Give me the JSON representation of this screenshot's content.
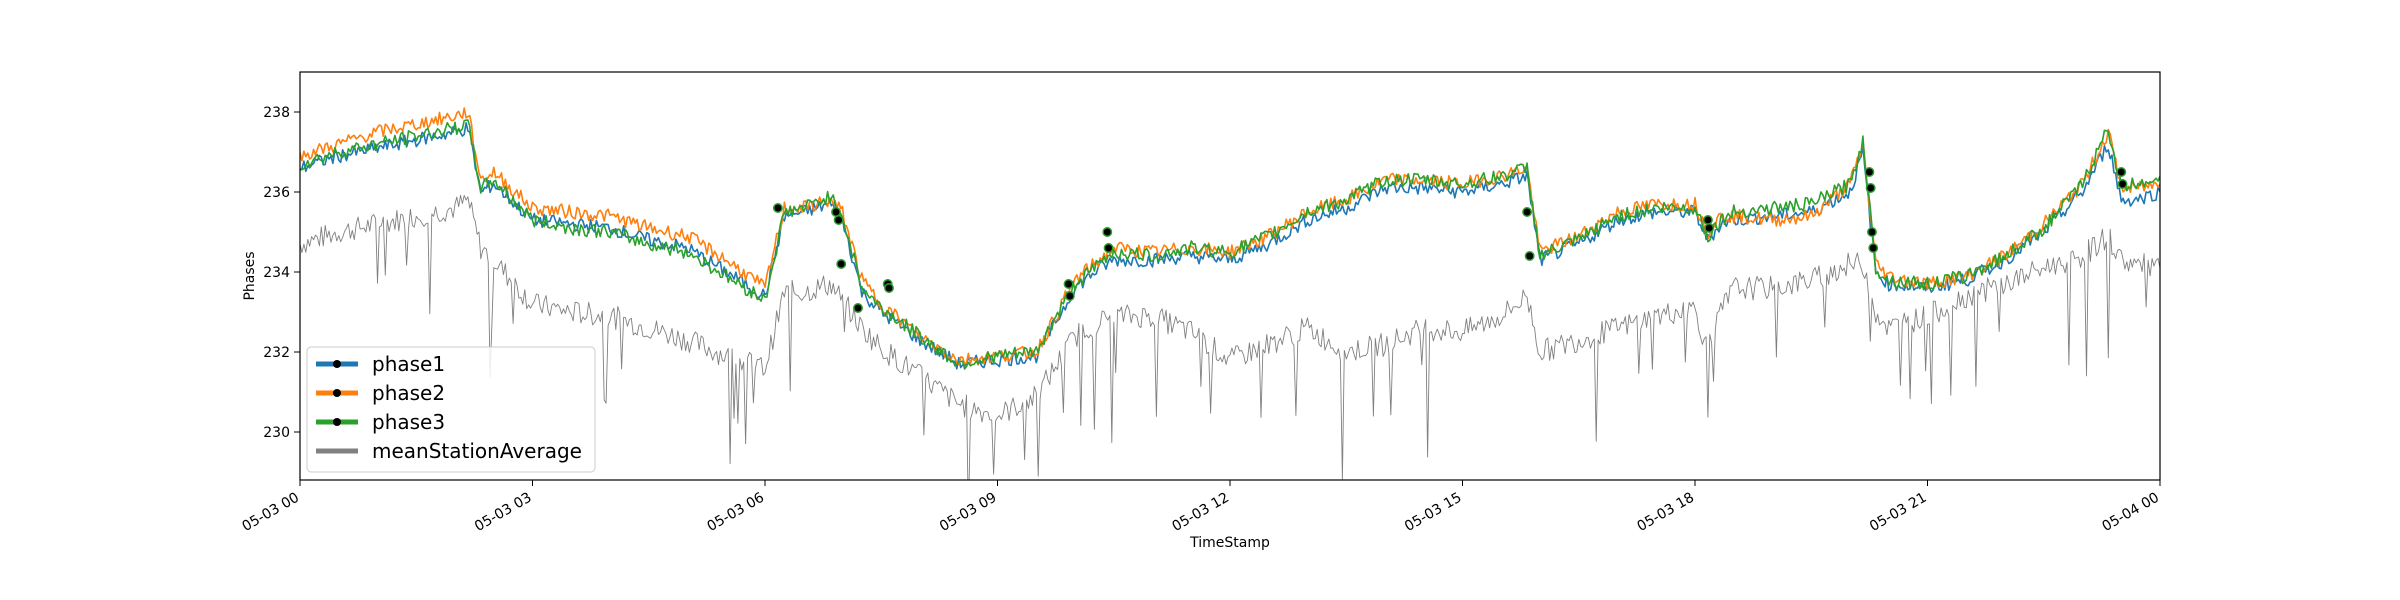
{
  "chart_data": {
    "type": "line",
    "xlabel": "TimeStamp",
    "ylabel": "Phases",
    "xlim": [
      "05-03 00:00",
      "05-04 00:00"
    ],
    "ylim": [
      228.8,
      239.0
    ],
    "x_tick_labels": [
      "05-03 00",
      "05-03 03",
      "05-03 06",
      "05-03 09",
      "05-03 12",
      "05-03 15",
      "05-03 18",
      "05-03 21",
      "05-04 00"
    ],
    "y_ticks": [
      230,
      232,
      234,
      236,
      238
    ],
    "grid": false,
    "legend_position": "lower-left",
    "colors": {
      "phase1": "#1f77b4",
      "phase2": "#ff7f0e",
      "phase3": "#2ca02c",
      "meanStationAverage": "#808080",
      "marker": "#000000"
    },
    "series": [
      {
        "name": "phase1",
        "x": [
          "00:00",
          "00:30",
          "01:00",
          "01:30",
          "02:00",
          "02:10",
          "02:20",
          "02:30",
          "03:00",
          "03:30",
          "04:00",
          "04:30",
          "05:00",
          "05:30",
          "06:00",
          "06:15",
          "06:30",
          "06:50",
          "07:00",
          "07:15",
          "07:30",
          "08:00",
          "08:30",
          "09:00",
          "09:30",
          "10:00",
          "10:15",
          "10:30",
          "11:00",
          "11:30",
          "12:00",
          "12:30",
          "13:00",
          "13:30",
          "14:00",
          "14:30",
          "15:00",
          "15:30",
          "15:50",
          "16:00",
          "16:30",
          "17:00",
          "17:30",
          "18:00",
          "18:10",
          "18:20",
          "18:30",
          "19:00",
          "19:30",
          "20:00",
          "20:10",
          "20:20",
          "20:30",
          "21:00",
          "21:30",
          "22:00",
          "22:30",
          "23:00",
          "23:20",
          "23:30",
          "23:40",
          "24:00"
        ],
        "values": [
          236.6,
          236.9,
          237.1,
          237.3,
          237.5,
          237.6,
          236.0,
          236.2,
          235.3,
          235.2,
          235.1,
          234.8,
          234.6,
          234.0,
          233.4,
          235.4,
          235.5,
          235.7,
          235.3,
          233.5,
          233.0,
          232.3,
          231.7,
          231.8,
          231.9,
          233.6,
          234.0,
          234.3,
          234.3,
          234.4,
          234.3,
          234.7,
          235.3,
          235.6,
          236.1,
          236.1,
          236.0,
          236.2,
          236.4,
          234.3,
          234.7,
          235.3,
          235.5,
          235.5,
          234.8,
          235.2,
          235.3,
          235.4,
          235.5,
          236.0,
          237.0,
          234.0,
          233.7,
          233.6,
          233.8,
          234.3,
          235.0,
          236.0,
          237.2,
          235.8,
          235.8,
          236.0
        ]
      },
      {
        "name": "phase2",
        "x": [
          "00:00",
          "00:30",
          "01:00",
          "01:30",
          "02:00",
          "02:10",
          "02:20",
          "02:30",
          "03:00",
          "03:30",
          "04:00",
          "04:30",
          "05:00",
          "05:30",
          "06:00",
          "06:15",
          "06:30",
          "06:50",
          "07:00",
          "07:15",
          "07:30",
          "08:00",
          "08:30",
          "09:00",
          "09:30",
          "10:00",
          "10:15",
          "10:30",
          "11:00",
          "11:30",
          "12:00",
          "12:30",
          "13:00",
          "13:30",
          "14:00",
          "14:30",
          "15:00",
          "15:30",
          "15:50",
          "16:00",
          "16:30",
          "17:00",
          "17:30",
          "18:00",
          "18:10",
          "18:20",
          "18:30",
          "19:00",
          "19:30",
          "20:00",
          "20:10",
          "20:20",
          "20:30",
          "21:00",
          "21:30",
          "22:00",
          "22:30",
          "23:00",
          "23:20",
          "23:30",
          "23:40",
          "24:00"
        ],
        "values": [
          236.9,
          237.2,
          237.5,
          237.7,
          237.9,
          238.0,
          236.3,
          236.5,
          235.6,
          235.5,
          235.4,
          235.1,
          234.9,
          234.3,
          233.6,
          235.6,
          235.6,
          235.8,
          235.5,
          233.8,
          233.2,
          232.4,
          231.8,
          231.9,
          232.0,
          233.8,
          234.2,
          234.6,
          234.5,
          234.6,
          234.5,
          234.9,
          235.5,
          235.8,
          236.3,
          236.3,
          236.2,
          236.4,
          236.6,
          234.5,
          234.9,
          235.5,
          235.7,
          235.7,
          235.0,
          235.4,
          235.4,
          235.3,
          235.4,
          236.2,
          237.2,
          234.2,
          233.9,
          233.7,
          233.9,
          234.4,
          235.2,
          236.2,
          237.5,
          236.1,
          236.1,
          236.2
        ]
      },
      {
        "name": "phase3",
        "x": [
          "00:00",
          "00:30",
          "01:00",
          "01:30",
          "02:00",
          "02:10",
          "02:20",
          "02:30",
          "03:00",
          "03:30",
          "04:00",
          "04:30",
          "05:00",
          "05:30",
          "06:00",
          "06:15",
          "06:30",
          "06:50",
          "07:00",
          "07:15",
          "07:30",
          "08:00",
          "08:30",
          "09:00",
          "09:30",
          "10:00",
          "10:15",
          "10:30",
          "11:00",
          "11:30",
          "12:00",
          "12:30",
          "13:00",
          "13:30",
          "14:00",
          "14:30",
          "15:00",
          "15:30",
          "15:50",
          "16:00",
          "16:30",
          "17:00",
          "17:30",
          "18:00",
          "18:10",
          "18:20",
          "18:30",
          "19:00",
          "19:30",
          "20:00",
          "20:10",
          "20:20",
          "20:30",
          "21:00",
          "21:30",
          "22:00",
          "22:30",
          "23:00",
          "23:20",
          "23:30",
          "23:40",
          "24:00"
        ],
        "values": [
          236.7,
          237.0,
          237.2,
          237.4,
          237.6,
          237.7,
          236.1,
          236.3,
          235.3,
          235.1,
          235.0,
          234.7,
          234.5,
          233.9,
          233.3,
          235.5,
          235.6,
          235.9,
          235.4,
          233.6,
          233.1,
          232.4,
          231.7,
          231.9,
          232.0,
          233.7,
          234.1,
          234.5,
          234.4,
          234.6,
          234.5,
          234.9,
          235.5,
          235.8,
          236.3,
          236.3,
          236.2,
          236.4,
          236.6,
          234.4,
          234.8,
          235.4,
          235.6,
          235.6,
          234.9,
          235.3,
          235.5,
          235.6,
          235.7,
          236.2,
          237.3,
          234.1,
          233.8,
          233.7,
          233.9,
          234.4,
          235.1,
          236.2,
          237.6,
          236.1,
          236.2,
          236.4
        ]
      },
      {
        "name": "meanStationAverage",
        "x": [
          "00:00",
          "00:30",
          "01:00",
          "01:30",
          "02:00",
          "02:10",
          "02:20",
          "02:30",
          "03:00",
          "03:30",
          "04:00",
          "04:30",
          "05:00",
          "05:30",
          "06:00",
          "06:15",
          "06:30",
          "06:50",
          "07:00",
          "07:15",
          "07:30",
          "08:00",
          "08:30",
          "09:00",
          "09:30",
          "10:00",
          "10:15",
          "10:30",
          "11:00",
          "11:30",
          "12:00",
          "12:30",
          "13:00",
          "13:30",
          "14:00",
          "14:30",
          "15:00",
          "15:30",
          "15:50",
          "16:00",
          "16:30",
          "17:00",
          "17:30",
          "18:00",
          "18:10",
          "18:20",
          "18:30",
          "19:00",
          "19:30",
          "20:00",
          "20:10",
          "20:20",
          "20:30",
          "21:00",
          "21:30",
          "22:00",
          "22:30",
          "23:00",
          "23:20",
          "23:30",
          "23:40",
          "24:00"
        ],
        "values": [
          234.7,
          235.0,
          235.2,
          235.4,
          235.6,
          235.8,
          234.6,
          234.3,
          233.2,
          233.0,
          232.9,
          232.6,
          232.3,
          231.9,
          231.6,
          233.5,
          233.5,
          233.7,
          233.3,
          232.6,
          232.1,
          231.4,
          230.7,
          230.4,
          230.9,
          232.4,
          232.7,
          232.9,
          232.9,
          232.5,
          231.8,
          232.2,
          232.6,
          232.0,
          232.2,
          232.6,
          232.5,
          232.9,
          233.4,
          232.0,
          232.3,
          232.6,
          232.9,
          233.1,
          232.0,
          233.0,
          233.6,
          233.6,
          233.8,
          234.2,
          234.2,
          233.0,
          232.6,
          232.9,
          233.4,
          233.7,
          234.1,
          234.4,
          234.9,
          234.3,
          234.2,
          234.1
        ]
      }
    ],
    "markers": [
      {
        "x": "06:10",
        "y": 235.6
      },
      {
        "x": "06:55",
        "y": 235.5
      },
      {
        "x": "06:57",
        "y": 235.3
      },
      {
        "x": "06:59",
        "y": 234.2
      },
      {
        "x": "07:12",
        "y": 233.1
      },
      {
        "x": "07:35",
        "y": 233.7
      },
      {
        "x": "07:36",
        "y": 233.6
      },
      {
        "x": "09:55",
        "y": 233.7
      },
      {
        "x": "09:56",
        "y": 233.4
      },
      {
        "x": "10:25",
        "y": 235.0
      },
      {
        "x": "10:26",
        "y": 234.6
      },
      {
        "x": "15:50",
        "y": 235.5
      },
      {
        "x": "15:52",
        "y": 234.4
      },
      {
        "x": "18:10",
        "y": 235.3
      },
      {
        "x": "18:11",
        "y": 235.1
      },
      {
        "x": "20:15",
        "y": 236.5
      },
      {
        "x": "20:16",
        "y": 236.1
      },
      {
        "x": "20:17",
        "y": 235.0
      },
      {
        "x": "20:18",
        "y": 234.6
      },
      {
        "x": "23:30",
        "y": 236.5
      },
      {
        "x": "23:31",
        "y": 236.2
      }
    ]
  }
}
